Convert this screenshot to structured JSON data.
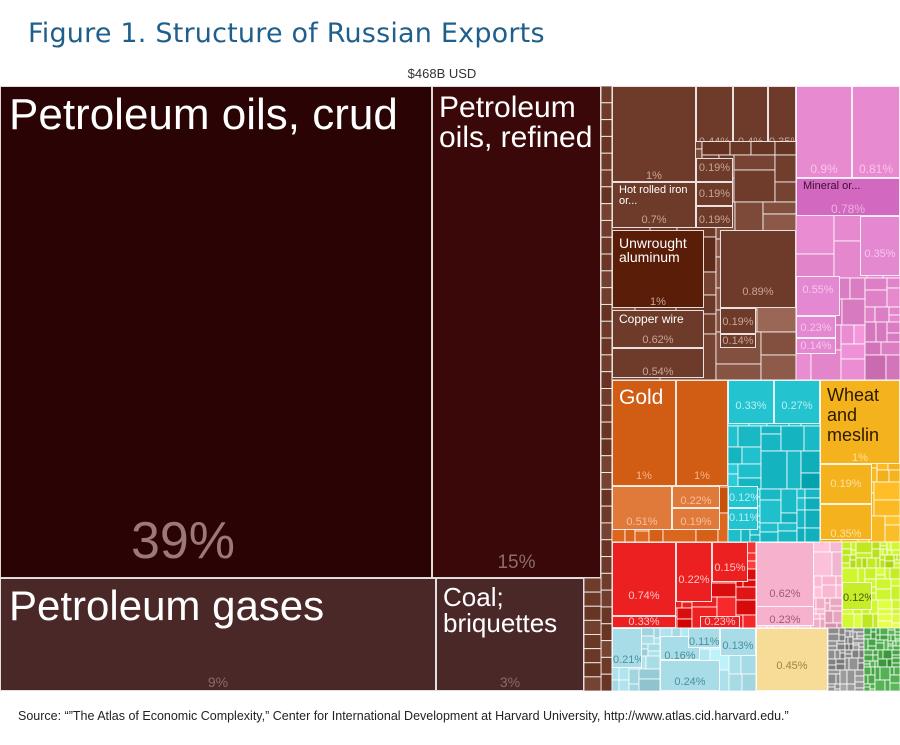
{
  "title": "Figure 1. Structure of Russian Exports",
  "total_label": "$468B USD",
  "source": "Source: “”The Atlas of Economic Complexity,” Center for International Development at Harvard University, http://www.atlas.cid.harvard.edu.”",
  "chart_data": {
    "type": "treemap",
    "total": "$468B USD",
    "tiles": [
      {
        "name": "Petroleum oils, crud",
        "share": "39%",
        "share_pct": 39,
        "color": "#2a0404"
      },
      {
        "name": "Petroleum oils, refined",
        "share": "15%",
        "share_pct": 15,
        "color": "#3a0808"
      },
      {
        "name": "Petroleum gases",
        "share": "9%",
        "share_pct": 9,
        "color": "#4b2828"
      },
      {
        "name": "Coal; briquettes",
        "share": "3%",
        "share_pct": 3,
        "color": "#4b2828"
      },
      {
        "name": "",
        "share": "1%",
        "share_pct": 1,
        "color": "#6e3b2a"
      },
      {
        "name": "",
        "share": "0.44%",
        "share_pct": 0.44,
        "color": "#6e3b2a"
      },
      {
        "name": "",
        "share": "0.4%",
        "share_pct": 0.4,
        "color": "#6e3b2a"
      },
      {
        "name": "",
        "share": "0.35%",
        "share_pct": 0.35,
        "color": "#6e3b2a"
      },
      {
        "name": "",
        "share": "0.19%",
        "share_pct": 0.19,
        "color": "#6e3b2a"
      },
      {
        "name": "",
        "share": "0.19%",
        "share_pct": 0.19,
        "color": "#6e3b2a"
      },
      {
        "name": "",
        "share": "0.19%",
        "share_pct": 0.19,
        "color": "#6e3b2a"
      },
      {
        "name": "Hot rolled iron or...",
        "share": "0.7%",
        "share_pct": 0.7,
        "color": "#6e3b2a"
      },
      {
        "name": "Unwrought aluminum",
        "share": "1%",
        "share_pct": 1,
        "color": "#5a1e08"
      },
      {
        "name": "",
        "share": "0.89%",
        "share_pct": 0.89,
        "color": "#6e3b2a"
      },
      {
        "name": "",
        "share": "0.19%",
        "share_pct": 0.19,
        "color": "#6e3b2a"
      },
      {
        "name": "",
        "share": "0.14%",
        "share_pct": 0.14,
        "color": "#6e3b2a"
      },
      {
        "name": "Copper wire",
        "share": "0.62%",
        "share_pct": 0.62,
        "color": "#6e3b2a"
      },
      {
        "name": "",
        "share": "0.54%",
        "share_pct": 0.54,
        "color": "#6e3b2a"
      },
      {
        "name": "",
        "share": "0.9%",
        "share_pct": 0.9,
        "color": "#e88ad0"
      },
      {
        "name": "",
        "share": "0.81%",
        "share_pct": 0.81,
        "color": "#e88ad0"
      },
      {
        "name": "Mineral or...",
        "share": "0.78%",
        "share_pct": 0.78,
        "color": "#d268c0"
      },
      {
        "name": "",
        "share": "0.35%",
        "share_pct": 0.35,
        "color": "#e488d2"
      },
      {
        "name": "",
        "share": "0.55%",
        "share_pct": 0.55,
        "color": "#e488d2"
      },
      {
        "name": "",
        "share": "0.23%",
        "share_pct": 0.23,
        "color": "#e488d2"
      },
      {
        "name": "",
        "share": "0.14%",
        "share_pct": 0.14,
        "color": "#e488d2"
      },
      {
        "name": "Gold",
        "share": "1%",
        "share_pct": 1,
        "color": "#d15c14"
      },
      {
        "name": "",
        "share": "1%",
        "share_pct": 1,
        "color": "#d15c14"
      },
      {
        "name": "",
        "share": "0.51%",
        "share_pct": 0.51,
        "color": "#e07a3a"
      },
      {
        "name": "",
        "share": "0.22%",
        "share_pct": 0.22,
        "color": "#e07a3a"
      },
      {
        "name": "",
        "share": "0.19%",
        "share_pct": 0.19,
        "color": "#e07a3a"
      },
      {
        "name": "",
        "share": "0.33%",
        "share_pct": 0.33,
        "color": "#24c3d0"
      },
      {
        "name": "",
        "share": "0.27%",
        "share_pct": 0.27,
        "color": "#24c3d0"
      },
      {
        "name": "",
        "share": "0.12%",
        "share_pct": 0.12,
        "color": "#24c3d0"
      },
      {
        "name": "",
        "share": "0.11%",
        "share_pct": 0.11,
        "color": "#24c3d0"
      },
      {
        "name": "Wheat and meslin",
        "share": "1%",
        "share_pct": 1,
        "color": "#f4b21d"
      },
      {
        "name": "",
        "share": "0.19%",
        "share_pct": 0.19,
        "color": "#f4b21d"
      },
      {
        "name": "",
        "share": "0.35%",
        "share_pct": 0.35,
        "color": "#f4b21d"
      },
      {
        "name": "",
        "share": "0.74%",
        "share_pct": 0.74,
        "color": "#ec2020"
      },
      {
        "name": "",
        "share": "0.22%",
        "share_pct": 0.22,
        "color": "#ec2020"
      },
      {
        "name": "",
        "share": "0.15%",
        "share_pct": 0.15,
        "color": "#ec2020"
      },
      {
        "name": "",
        "share": "0.33%",
        "share_pct": 0.33,
        "color": "#ec2020"
      },
      {
        "name": "",
        "share": "0.23%",
        "share_pct": 0.23,
        "color": "#ec2020"
      },
      {
        "name": "",
        "share": "0.62%",
        "share_pct": 0.62,
        "color": "#f6b2cc"
      },
      {
        "name": "",
        "share": "0.23%",
        "share_pct": 0.23,
        "color": "#f6b2cc"
      },
      {
        "name": "",
        "share": "0.12%",
        "share_pct": 0.12,
        "color": "#c6ee28"
      },
      {
        "name": "",
        "share": "0.21%",
        "share_pct": 0.21,
        "color": "#a8dce6"
      },
      {
        "name": "",
        "share": "0.16%",
        "share_pct": 0.16,
        "color": "#a8dce6"
      },
      {
        "name": "",
        "share": "0.11%",
        "share_pct": 0.11,
        "color": "#a8dce6"
      },
      {
        "name": "",
        "share": "0.13%",
        "share_pct": 0.13,
        "color": "#a8dce6"
      },
      {
        "name": "",
        "share": "0.24%",
        "share_pct": 0.24,
        "color": "#a8dce6"
      },
      {
        "name": "",
        "share": "0.45%",
        "share_pct": 0.45,
        "color": "#f6dc96"
      }
    ],
    "regions": [
      {
        "group": "minerals-metals",
        "color": "#6e3b2a"
      },
      {
        "group": "chemicals",
        "color": "#e88ad0"
      },
      {
        "group": "precious-metals",
        "color": "#d15c14"
      },
      {
        "group": "machinery",
        "color": "#24c3d0"
      },
      {
        "group": "grain",
        "color": "#f4b21d"
      },
      {
        "group": "vehicles",
        "color": "#ec2020"
      },
      {
        "group": "paper",
        "color": "#f6b2cc"
      },
      {
        "group": "agriculture",
        "color": "#c6ee28"
      },
      {
        "group": "wood-misc",
        "color": "#a8dce6"
      },
      {
        "group": "textiles",
        "color": "#f6dc96"
      },
      {
        "group": "stone",
        "color": "#8c8c8c"
      },
      {
        "group": "vegetables",
        "color": "#4aa84a"
      }
    ]
  }
}
